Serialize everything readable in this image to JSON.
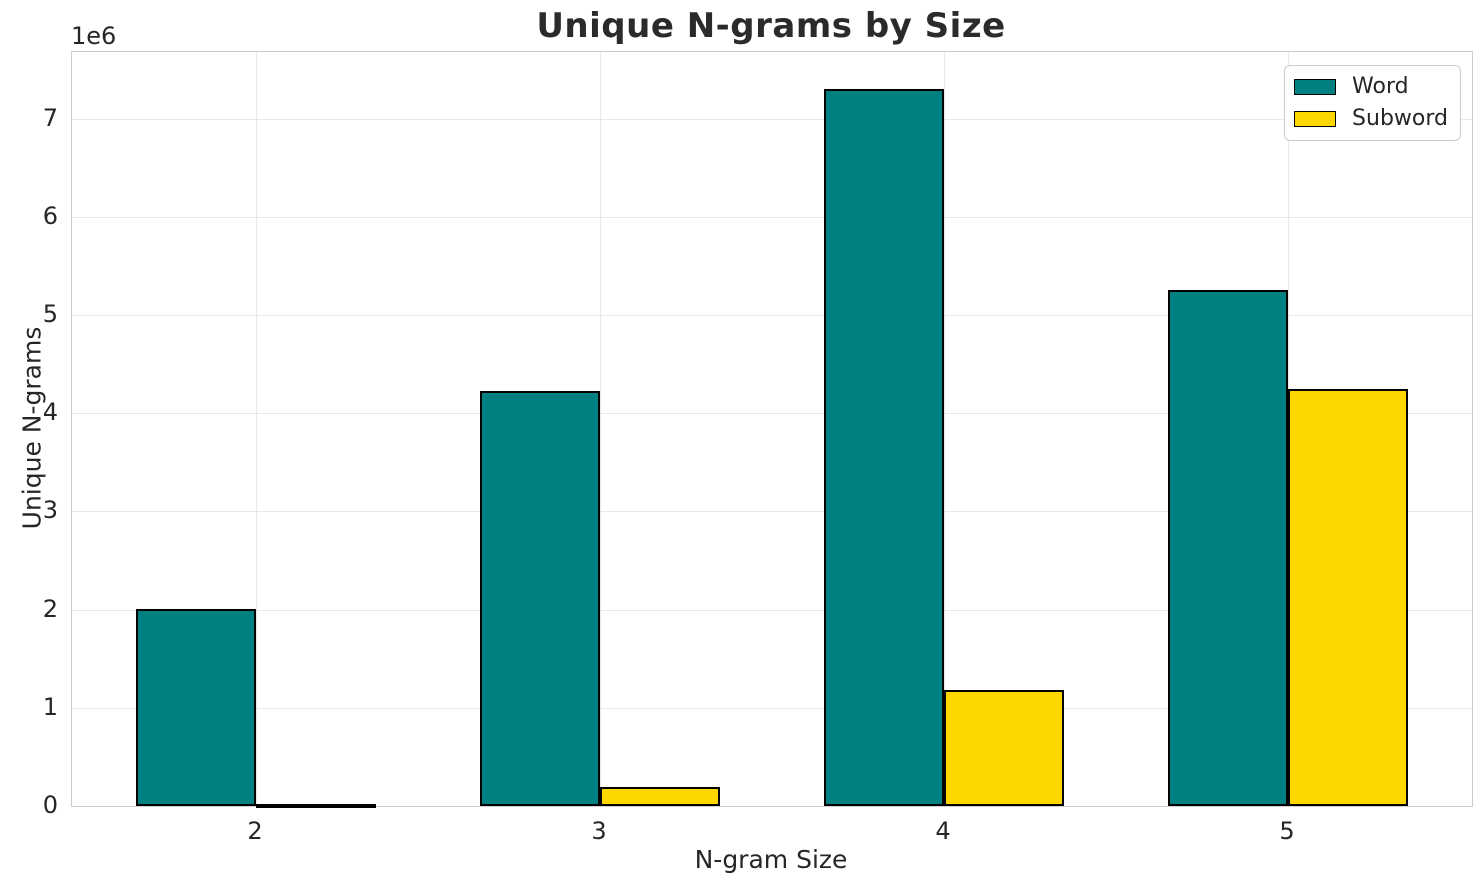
{
  "chart_data": {
    "type": "bar",
    "title": "Unique N-grams by Size",
    "xlabel": "N-gram Size",
    "ylabel": "Unique N-grams",
    "y_offset_label": "1e6",
    "categories": [
      "2",
      "3",
      "4",
      "5"
    ],
    "x_positions": [
      2,
      3,
      4,
      5
    ],
    "series": [
      {
        "name": "Word",
        "color": "#008080",
        "values": [
          2010000,
          4230000,
          7300000,
          5260000
        ]
      },
      {
        "name": "Subword",
        "color": "#FFD700",
        "values": [
          25000,
          190000,
          1180000,
          4250000
        ]
      }
    ],
    "bar_width": 0.35,
    "bar_edge_color": "#000000",
    "xlim": [
      1.465,
      5.535
    ],
    "ylim": [
      0,
      7680000
    ],
    "yticks": [
      0,
      1000000,
      2000000,
      3000000,
      4000000,
      5000000,
      6000000,
      7000000
    ],
    "ytick_labels": [
      "0",
      "1",
      "2",
      "3",
      "4",
      "5",
      "6",
      "7"
    ],
    "grid": true,
    "legend_position": "upper right"
  },
  "colors": {
    "background": "#ffffff",
    "grid": "#e8e8e8",
    "spine": "#cccccc",
    "text": "#262626",
    "title": "#2b2b2b"
  }
}
